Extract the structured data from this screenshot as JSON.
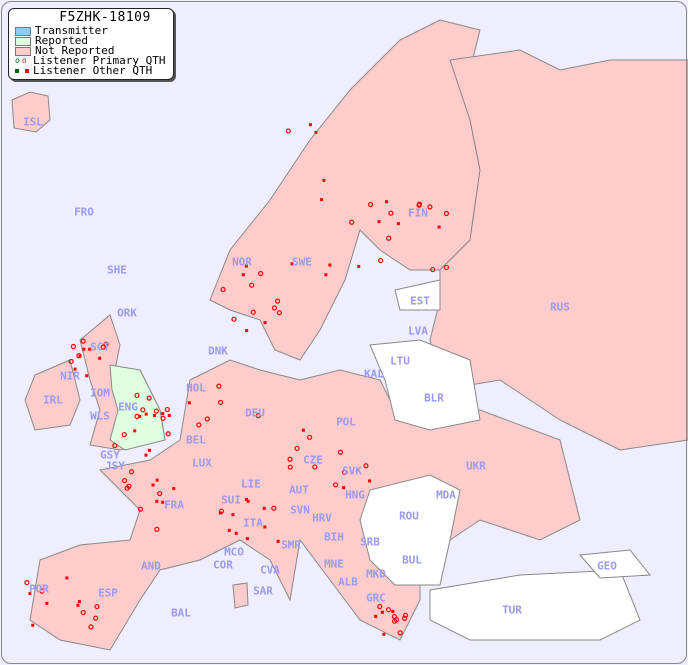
{
  "legend": {
    "title": "F5ZHK-18109",
    "items": [
      {
        "label": "Transmitter",
        "color": "#87cefa"
      },
      {
        "label": "Reported",
        "color": "#e0ffe0"
      },
      {
        "label": "Not Reported",
        "color": "#ffcccc"
      },
      {
        "label": "Listener Primary QTH",
        "marker": "open-circle"
      },
      {
        "label": "Listener Other QTH",
        "marker": "filled-square"
      }
    ]
  },
  "colors": {
    "sea": "#eeeeff",
    "not_reported": "#ffcccc",
    "reported": "#e0ffe0",
    "no_data": "#ffffff",
    "label": "#9a9af0",
    "marker": "#ff0000"
  },
  "countries": [
    "ISL",
    "FRO",
    "SHE",
    "ORK",
    "NOR",
    "SWE",
    "FIN",
    "EST",
    "RUS",
    "LVA",
    "LTU",
    "DNK",
    "SCT",
    "NIR",
    "IRL",
    "IOM",
    "ENG",
    "WLS",
    "GSY",
    "JSY",
    "HOL",
    "BEL",
    "LUX",
    "DEU",
    "KAL",
    "POL",
    "BLR",
    "CZE",
    "SVK",
    "UKR",
    "FRA",
    "SUI",
    "LIE",
    "AUT",
    "HNG",
    "MDA",
    "SVN",
    "HRV",
    "ROU",
    "ITA",
    "BIH",
    "SRB",
    "MCO",
    "COR",
    "SMR",
    "CVA",
    "MNE",
    "BUL",
    "GEO",
    "AND",
    "MKD",
    "ALB",
    "SAR",
    "POR",
    "ESP",
    "GRC",
    "TUR",
    "BAL"
  ]
}
